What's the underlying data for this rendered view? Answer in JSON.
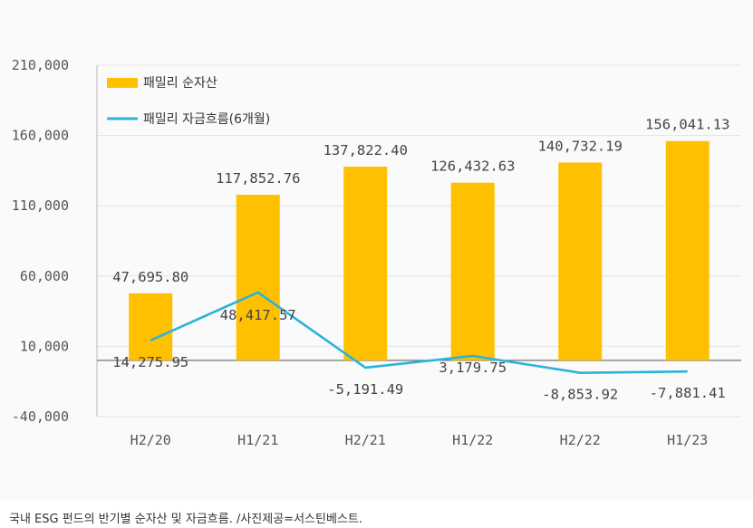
{
  "chart_data": {
    "type": "bar",
    "categories": [
      "H2/20",
      "H1/21",
      "H2/21",
      "H1/22",
      "H2/22",
      "H1/23"
    ],
    "series": [
      {
        "name": "패밀리 순자산",
        "kind": "bar",
        "color": "#FFC000",
        "values": [
          47695.8,
          117852.76,
          137822.4,
          126432.63,
          140732.19,
          156041.13
        ],
        "labels": [
          "47,695.80",
          "117,852.76",
          "137,822.40",
          "126,432.63",
          "140,732.19",
          "156,041.13"
        ]
      },
      {
        "name": "패밀리 자금흐름(6개월)",
        "kind": "line",
        "color": "#2AB3DB",
        "values": [
          14275.95,
          48417.57,
          -5191.49,
          3179.75,
          -8853.92,
          -7881.41
        ],
        "labels": [
          "14,275.95",
          "48,417.57",
          "-5,191.49",
          "3,179.75",
          "-8,853.92",
          "-7,881.41"
        ]
      }
    ],
    "ylim": [
      -40000,
      210000
    ],
    "yticks": [
      -40000,
      10000,
      60000,
      110000,
      160000,
      210000
    ],
    "ytick_labels": [
      "-40,000",
      "10,000",
      "60,000",
      "110,000",
      "160,000",
      "210,000"
    ],
    "grid": true,
    "legend_position": "top-left"
  },
  "caption": "국내 ESG 펀드의 반기별 순자산 및 자금흐름. /사진제공=서스틴베스트."
}
